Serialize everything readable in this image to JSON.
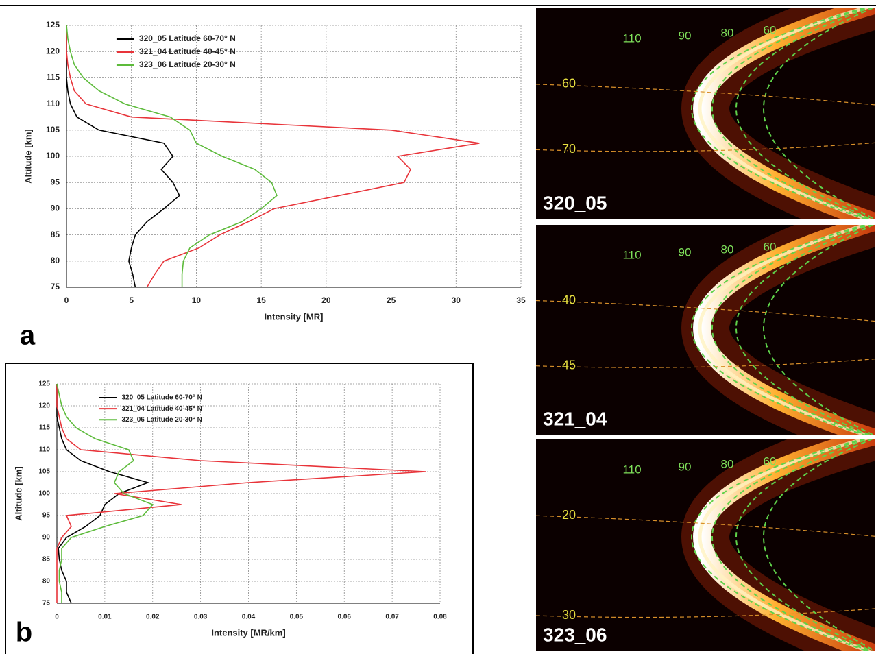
{
  "chart_data": [
    {
      "type": "line",
      "panel_label": "a",
      "x_label": "Intensity [MR]",
      "y_label": "Altitude [km]",
      "y": [
        75,
        77.5,
        80,
        82.5,
        85,
        87.5,
        90,
        92.5,
        95,
        97.5,
        100,
        102.5,
        105,
        107.5,
        110,
        112.5,
        115,
        117.5,
        120,
        122.5,
        125
      ],
      "series": [
        {
          "name": "320_05  Latitude 60-70° N",
          "color": "#000000",
          "values": [
            5.3,
            5.1,
            4.8,
            5.0,
            5.3,
            6.2,
            7.5,
            8.7,
            8.2,
            7.3,
            8.2,
            7.5,
            2.5,
            0.8,
            0.3,
            0.1,
            0,
            0,
            0,
            0,
            0
          ]
        },
        {
          "name": "321_04  Latitude 40-45° N",
          "color": "#e8343a",
          "values": [
            6.2,
            6.8,
            7.5,
            10.2,
            11.8,
            14.0,
            16.0,
            21.0,
            26.0,
            26.5,
            25.5,
            31.8,
            25.0,
            5.0,
            1.5,
            0.6,
            0.3,
            0.1,
            0,
            0,
            0
          ]
        },
        {
          "name": "323_06  Latitude 20-30° N",
          "color": "#5dbb3b",
          "values": [
            8.9,
            8.9,
            9.0,
            9.5,
            11.0,
            13.5,
            15.0,
            16.2,
            15.8,
            14.5,
            12.0,
            10.0,
            9.5,
            8.0,
            4.5,
            2.5,
            1.3,
            0.6,
            0.3,
            0.1,
            0
          ]
        }
      ],
      "xlim": [
        0,
        35
      ],
      "xticks": [
        0,
        5,
        10,
        15,
        20,
        25,
        30,
        35
      ],
      "ylim": [
        75,
        125
      ],
      "yticks": [
        75,
        80,
        85,
        90,
        95,
        100,
        105,
        110,
        115,
        120,
        125
      ],
      "grid": true,
      "legend": "upper left"
    },
    {
      "type": "line",
      "panel_label": "b",
      "x_label": "Intensity [MR/km]",
      "y_label": "Altitude [km]",
      "y": [
        75,
        77.5,
        80,
        82.5,
        85,
        87.5,
        90,
        92.5,
        95,
        97.5,
        100,
        102.5,
        105,
        107.5,
        110,
        112.5,
        115,
        117.5,
        120,
        122.5,
        125
      ],
      "series": [
        {
          "name": "320_05  Latitude 60-70° N",
          "color": "#000000",
          "values": [
            0.003,
            0.002,
            0.002,
            0.001,
            0.0005,
            0.0003,
            0.002,
            0.006,
            0.009,
            0.01,
            0.013,
            0.019,
            0.011,
            0.005,
            0.002,
            0.001,
            0.0005,
            0,
            0,
            0,
            0
          ]
        },
        {
          "name": "321_04  Latitude 40-45° N",
          "color": "#e8343a",
          "values": [
            0,
            0,
            0,
            0,
            0,
            0,
            0.001,
            0.003,
            0.002,
            0.026,
            0.012,
            0.04,
            0.077,
            0.03,
            0.005,
            0.002,
            0.001,
            0.0005,
            0,
            0,
            0
          ]
        },
        {
          "name": "323_06  Latitude 20-30° N",
          "color": "#5dbb3b",
          "values": [
            0.001,
            0.001,
            0.0005,
            0.0005,
            0.001,
            0.001,
            0.003,
            0.01,
            0.018,
            0.02,
            0.014,
            0.012,
            0.013,
            0.016,
            0.015,
            0.008,
            0.004,
            0.002,
            0.001,
            0.0005,
            0
          ]
        }
      ],
      "xlim": [
        0,
        0.08
      ],
      "xticks": [
        0,
        0.01,
        0.02,
        0.03,
        0.04,
        0.05,
        0.06,
        0.07,
        0.08
      ],
      "ylim": [
        75,
        125
      ],
      "yticks": [
        75,
        80,
        85,
        90,
        95,
        100,
        105,
        110,
        115,
        120,
        125
      ],
      "grid": true,
      "legend": "upper left"
    }
  ],
  "image_panels": [
    {
      "label": "320_05",
      "contours": [
        "110",
        "90",
        "80",
        "60"
      ],
      "latitudes": [
        "60",
        "70"
      ]
    },
    {
      "label": "321_04",
      "contours": [
        "110",
        "90",
        "80",
        "60"
      ],
      "latitudes": [
        "40",
        "45"
      ]
    },
    {
      "label": "323_06",
      "contours": [
        "110",
        "90",
        "80",
        "60"
      ],
      "latitudes": [
        "20",
        "30"
      ]
    }
  ]
}
